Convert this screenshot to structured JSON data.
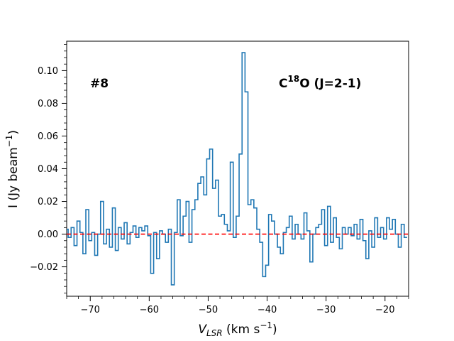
{
  "chart_data": {
    "type": "line",
    "style": "step",
    "title": "",
    "xlabel": {
      "main": "V",
      "sub": "LSR",
      "rest": " (km s",
      "sup": "−1",
      "end": ")"
    },
    "ylabel": {
      "main": "I (Jy beam",
      "sup": "−1",
      "end": ")"
    },
    "xlim": [
      -74,
      -16
    ],
    "ylim": [
      -0.038,
      0.118
    ],
    "xticks": [
      -70,
      -60,
      -50,
      -40,
      -30,
      -20
    ],
    "xtick_labels": [
      "−70",
      "−60",
      "−50",
      "−40",
      "−30",
      "−20"
    ],
    "yticks": [
      -0.02,
      0.0,
      0.02,
      0.04,
      0.06,
      0.08,
      0.1
    ],
    "ytick_labels": [
      "−0.02",
      "0.00",
      "0.02",
      "0.04",
      "0.06",
      "0.08",
      "0.10"
    ],
    "annotations": {
      "source_id": "#8",
      "line_main": "C",
      "line_sup": "18",
      "line_rest": "O (J=2-1)"
    },
    "series": [
      {
        "name": "spectrum",
        "color": "#1f77b4",
        "x": [
          -74.0,
          -73.5,
          -73.0,
          -72.5,
          -72.0,
          -71.5,
          -71.0,
          -70.5,
          -70.0,
          -69.5,
          -69.0,
          -68.5,
          -68.0,
          -67.5,
          -67.0,
          -66.5,
          -66.0,
          -65.5,
          -65.0,
          -64.5,
          -64.0,
          -63.5,
          -63.0,
          -62.5,
          -62.0,
          -61.5,
          -61.0,
          -60.5,
          -60.0,
          -59.5,
          -59.0,
          -58.5,
          -58.0,
          -57.5,
          -57.0,
          -56.5,
          -56.0,
          -55.5,
          -55.0,
          -54.5,
          -54.0,
          -53.5,
          -53.0,
          -52.5,
          -52.0,
          -51.5,
          -51.0,
          -50.5,
          -50.0,
          -49.5,
          -49.0,
          -48.5,
          -48.0,
          -47.5,
          -47.0,
          -46.5,
          -46.0,
          -45.5,
          -45.0,
          -44.5,
          -44.0,
          -43.5,
          -43.0,
          -42.5,
          -42.0,
          -41.5,
          -41.0,
          -40.5,
          -40.0,
          -39.5,
          -39.0,
          -38.5,
          -38.0,
          -37.5,
          -37.0,
          -36.5,
          -36.0,
          -35.5,
          -35.0,
          -34.5,
          -34.0,
          -33.5,
          -33.0,
          -32.5,
          -32.0,
          -31.5,
          -31.0,
          -30.5,
          -30.0,
          -29.5,
          -29.0,
          -28.5,
          -28.0,
          -27.5,
          -27.0,
          -26.5,
          -26.0,
          -25.5,
          -25.0,
          -24.5,
          -24.0,
          -23.5,
          -23.0,
          -22.5,
          -22.0,
          -21.5,
          -21.0,
          -20.5,
          -20.0,
          -19.5,
          -19.0,
          -18.5,
          -18.0,
          -17.5,
          -17.0,
          -16.5
        ],
        "values": [
          0.003,
          -0.002,
          0.004,
          -0.007,
          0.008,
          0.001,
          -0.012,
          0.015,
          -0.004,
          0.001,
          -0.013,
          0.0,
          0.02,
          -0.006,
          0.003,
          -0.008,
          0.016,
          -0.01,
          0.004,
          -0.003,
          0.007,
          -0.006,
          0.001,
          0.005,
          -0.002,
          0.004,
          0.002,
          0.005,
          -0.001,
          -0.024,
          0.001,
          -0.015,
          0.002,
          0.0,
          -0.005,
          0.003,
          -0.031,
          0.001,
          0.021,
          -0.001,
          0.011,
          0.02,
          -0.005,
          0.015,
          0.021,
          0.031,
          0.035,
          0.024,
          0.046,
          0.052,
          0.028,
          0.033,
          0.011,
          0.012,
          0.006,
          0.002,
          0.044,
          -0.002,
          0.011,
          0.049,
          0.111,
          0.087,
          0.018,
          0.021,
          0.016,
          0.003,
          -0.005,
          -0.026,
          -0.019,
          0.012,
          0.008,
          0.0,
          -0.008,
          -0.012,
          0.001,
          0.004,
          0.011,
          -0.003,
          0.006,
          0.0,
          -0.003,
          0.013,
          0.002,
          -0.017,
          0.0,
          0.004,
          0.006,
          0.015,
          -0.007,
          0.017,
          -0.005,
          0.01,
          -0.002,
          -0.009,
          0.004,
          0.0,
          0.004,
          -0.001,
          0.006,
          -0.003,
          0.009,
          -0.004,
          -0.015,
          0.002,
          -0.008,
          0.01,
          -0.002,
          0.004,
          -0.003,
          0.01,
          0.003,
          0.009,
          0.0,
          -0.008,
          0.006,
          -0.002
        ]
      },
      {
        "name": "zero-baseline",
        "color": "#ff0000",
        "linestyle": "dashed",
        "y": 0.0
      }
    ]
  }
}
